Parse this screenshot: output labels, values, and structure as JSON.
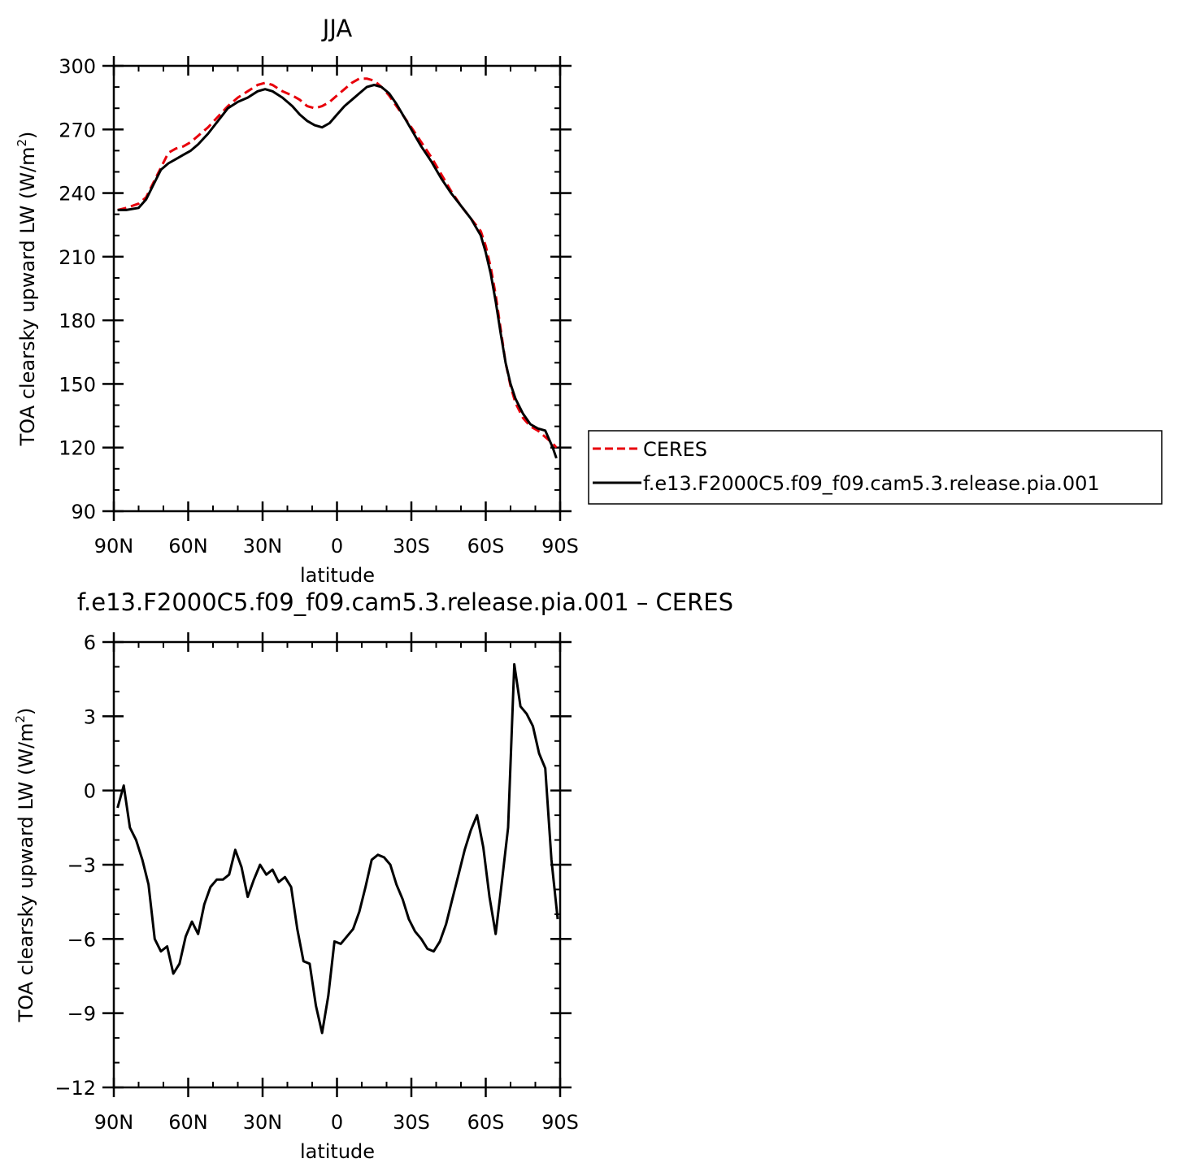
{
  "chart_data": [
    {
      "type": "line",
      "title": "JJA",
      "xlabel": "latitude",
      "ylabel_main": "TOA clearsky upward LW (W/m",
      "ylabel_sup": "2",
      "ylabel_close": ")",
      "xlim": [
        -90,
        90
      ],
      "ylim": [
        90,
        300
      ],
      "xticks": [
        -90,
        -60,
        -30,
        0,
        30,
        60,
        90
      ],
      "xtick_labels": [
        "90N",
        "60N",
        "30N",
        "0",
        "30S",
        "60S",
        "90S"
      ],
      "yticks": [
        90,
        120,
        150,
        180,
        210,
        240,
        270,
        300
      ],
      "ytick_labels": [
        "90",
        "120",
        "150",
        "180",
        "210",
        "240",
        "270",
        "300"
      ],
      "grid": false,
      "legend_placement": "right",
      "series": [
        {
          "name": "CERES",
          "color": "#e8000b",
          "dash": "dashed",
          "x": [
            -88.5,
            -85,
            -80,
            -77,
            -74,
            -71,
            -68,
            -65,
            -62,
            -59,
            -56,
            -52,
            -48,
            -44,
            -40,
            -36,
            -32,
            -29,
            -26,
            -22,
            -18,
            -15,
            -12,
            -9,
            -6,
            -3,
            0,
            3,
            6,
            9,
            12,
            15,
            18,
            21,
            24,
            27,
            30,
            34,
            38,
            42,
            46,
            50,
            54,
            58,
            60,
            62,
            64,
            66,
            68,
            70,
            72,
            75,
            78,
            81,
            84,
            87,
            88.5
          ],
          "values": [
            232,
            233,
            235,
            238,
            245,
            252,
            259,
            261,
            262,
            264,
            267,
            271,
            276,
            281,
            285,
            288,
            291,
            292,
            291,
            288,
            286,
            284,
            281,
            280,
            281,
            283,
            286,
            289,
            292,
            294,
            294,
            293,
            290,
            286,
            281,
            276,
            271,
            264,
            257,
            249,
            241,
            234,
            228,
            222,
            215,
            205,
            192,
            176,
            160,
            149,
            141,
            134,
            130,
            128,
            125,
            122,
            120
          ]
        },
        {
          "name": "f.e13.F2000C5.f09_f09.cam5.3.release.pia.001",
          "color": "#000000",
          "dash": "solid",
          "x": [
            -88.5,
            -85,
            -80,
            -77,
            -74,
            -71,
            -68,
            -65,
            -62,
            -59,
            -56,
            -52,
            -48,
            -44,
            -40,
            -36,
            -32,
            -29,
            -26,
            -22,
            -18,
            -15,
            -12,
            -9,
            -6,
            -3,
            0,
            3,
            6,
            9,
            12,
            15,
            18,
            21,
            24,
            27,
            30,
            34,
            38,
            42,
            46,
            50,
            54,
            58,
            60,
            62,
            64,
            66,
            68,
            70,
            72,
            75,
            78,
            81,
            84,
            87,
            88.5
          ],
          "values": [
            232,
            232,
            233,
            237,
            244,
            251,
            254,
            256,
            258,
            260,
            263,
            268,
            274,
            280,
            283,
            285,
            288,
            289,
            288,
            285,
            281,
            277,
            274,
            272,
            271,
            273,
            277,
            281,
            284,
            287,
            290,
            291,
            290,
            287,
            282,
            276,
            270,
            262,
            255,
            247,
            240,
            234,
            228,
            220,
            212,
            202,
            189,
            174,
            160,
            150,
            143,
            136,
            131,
            129,
            128,
            120,
            115
          ]
        }
      ]
    },
    {
      "type": "line",
      "title": "f.e13.F2000C5.f09_f09.cam5.3.release.pia.001 – CERES",
      "xlabel": "latitude",
      "ylabel_main": "TOA clearsky upward LW (W/m",
      "ylabel_sup": "2",
      "ylabel_close": ")",
      "xlim": [
        -90,
        90
      ],
      "ylim": [
        -12,
        6
      ],
      "xticks": [
        -90,
        -60,
        -30,
        0,
        30,
        60,
        90
      ],
      "xtick_labels": [
        "90N",
        "60N",
        "30N",
        "0",
        "30S",
        "60S",
        "90S"
      ],
      "yticks": [
        -12,
        -9,
        -6,
        -3,
        0,
        3,
        6
      ],
      "ytick_labels": [
        "−12",
        "−9",
        "−6",
        "−3",
        "0",
        "3",
        "6"
      ],
      "grid": false,
      "series": [
        {
          "color": "#000000",
          "dash": "solid",
          "x": [
            -88.5,
            -86,
            -83.5,
            -81,
            -78.5,
            -76,
            -73.5,
            -71,
            -68.5,
            -66,
            -63.5,
            -61,
            -58.5,
            -56,
            -53.5,
            -51,
            -48.5,
            -46,
            -43.5,
            -41,
            -38.5,
            -36,
            -33.5,
            -31,
            -28.5,
            -26,
            -23.5,
            -21,
            -18.5,
            -16,
            -13.5,
            -11,
            -8.5,
            -6,
            -3.5,
            -1,
            1.5,
            4,
            6.5,
            9,
            11.5,
            14,
            16.5,
            19,
            21.5,
            24,
            26.5,
            29,
            31.5,
            34,
            36.5,
            39,
            41.5,
            44,
            46.5,
            49,
            51.5,
            54,
            56.5,
            59,
            61.5,
            64,
            66.5,
            69,
            71.5,
            74,
            76.5,
            79,
            81.5,
            84,
            86.5,
            89
          ],
          "values": [
            -0.7,
            0.2,
            -1.5,
            -2.0,
            -2.8,
            -3.8,
            -6.0,
            -6.5,
            -6.3,
            -7.4,
            -7.0,
            -5.9,
            -5.3,
            -5.8,
            -4.6,
            -3.9,
            -3.6,
            -3.6,
            -3.4,
            -2.4,
            -3.1,
            -4.3,
            -3.6,
            -3.0,
            -3.4,
            -3.2,
            -3.7,
            -3.5,
            -3.9,
            -5.6,
            -6.9,
            -7.0,
            -8.7,
            -9.8,
            -8.3,
            -6.1,
            -6.2,
            -5.9,
            -5.6,
            -4.9,
            -3.9,
            -2.8,
            -2.6,
            -2.7,
            -3.0,
            -3.8,
            -4.4,
            -5.2,
            -5.7,
            -6.0,
            -6.4,
            -6.5,
            -6.1,
            -5.4,
            -4.4,
            -3.4,
            -2.4,
            -1.6,
            -1.0,
            -2.3,
            -4.3,
            -5.8,
            -3.7,
            -1.5,
            5.1,
            3.4,
            3.1,
            2.6,
            1.5,
            0.9,
            -2.8,
            -5.2
          ]
        }
      ]
    }
  ]
}
